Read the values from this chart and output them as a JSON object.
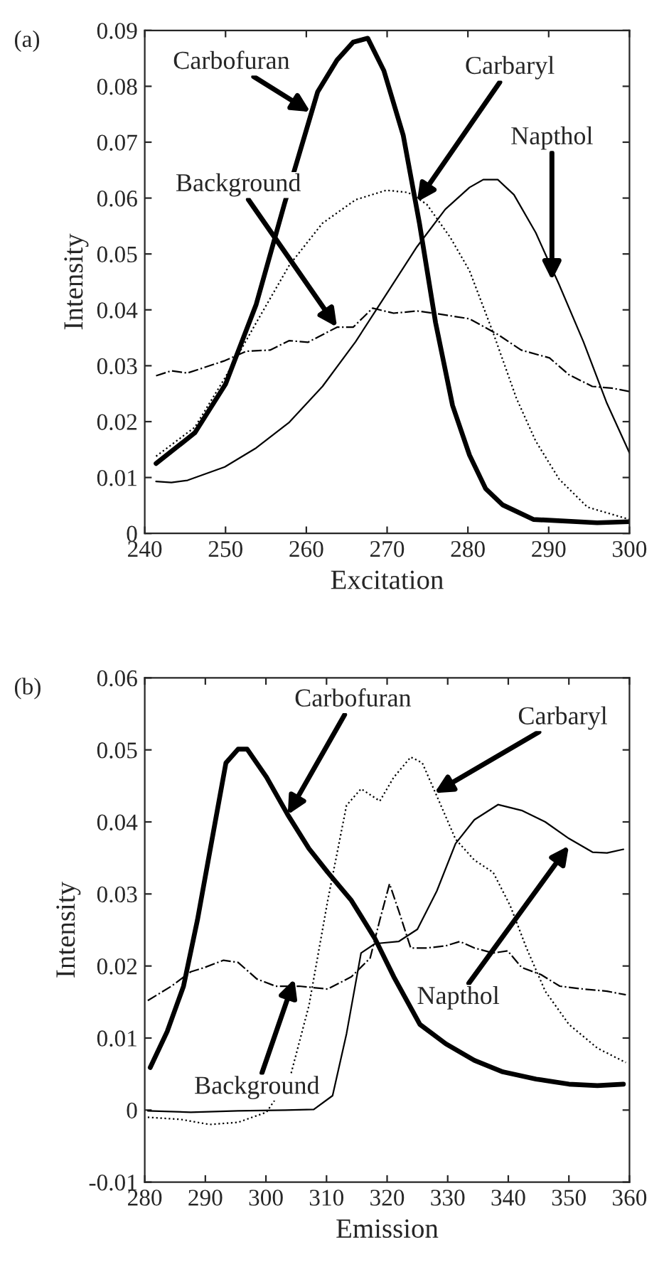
{
  "chart_data": [
    {
      "type": "line",
      "title": "(a)",
      "xlabel": "Excitation",
      "ylabel": "Intensity",
      "xlim": [
        240,
        300
      ],
      "ylim": [
        0,
        0.09
      ],
      "xticks": [
        240,
        250,
        260,
        270,
        280,
        290,
        300
      ],
      "yticks": [
        0,
        0.01,
        0.02,
        0.03,
        0.04,
        0.05,
        0.06,
        0.07,
        0.08,
        0.09
      ],
      "grid": false,
      "legend": false,
      "series": [
        {
          "color": "#000000",
          "line_style": "solid",
          "x": [
            241.4,
            246.2,
            250,
            253.8,
            257.3,
            261.4,
            263.8,
            265.8,
            267.6,
            269.6,
            272,
            274,
            276,
            278.1,
            280.2,
            282.2,
            284.3,
            288.1,
            296,
            300
          ],
          "values": [
            0.0125,
            0.018,
            0.0267,
            0.041,
            0.059,
            0.079,
            0.0847,
            0.0879,
            0.0886,
            0.0828,
            0.0712,
            0.0555,
            0.0377,
            0.0229,
            0.014,
            0.008,
            0.0051,
            0.0025,
            0.0019,
            0.0021
          ]
        },
        {
          "color": "#000000",
          "line_style": "dotted",
          "x": [
            241.4,
            246.2,
            250,
            253.8,
            257.9,
            262,
            266.1,
            269.9,
            272.6,
            274.9,
            277.8,
            280.2,
            283.1,
            286,
            288.4,
            291.3,
            294.8,
            300
          ],
          "values": [
            0.0138,
            0.019,
            0.028,
            0.0377,
            0.048,
            0.0555,
            0.0597,
            0.0614,
            0.061,
            0.0589,
            0.053,
            0.047,
            0.036,
            0.0242,
            0.0165,
            0.0097,
            0.0047,
            0.0025
          ]
        },
        {
          "color": "#000000",
          "line_style": "solid",
          "x": [
            241.4,
            243.3,
            245.3,
            249.9,
            253.8,
            257.9,
            262,
            266.1,
            269.9,
            273.7,
            277.2,
            280.2,
            281.9,
            283.7,
            285.7,
            288.4,
            291.3,
            294.3,
            297.2,
            300
          ],
          "values": [
            0.0093,
            0.0091,
            0.0095,
            0.0119,
            0.0153,
            0.0199,
            0.0263,
            0.0343,
            0.0428,
            0.0513,
            0.058,
            0.0619,
            0.0633,
            0.0633,
            0.0606,
            0.0538,
            0.0445,
            0.0343,
            0.0233,
            0.0144
          ]
        },
        {
          "color": "#000000",
          "line_style": "dashdot",
          "x": [
            241.4,
            243.3,
            245.3,
            249.9,
            252.6,
            255.5,
            257.9,
            260.2,
            263.8,
            265.8,
            268.2,
            270.8,
            273.7,
            276.7,
            280.2,
            283.7,
            286.6,
            290.1,
            292.5,
            295.4,
            297.8,
            300
          ],
          "values": [
            0.0282,
            0.0291,
            0.0287,
            0.0309,
            0.0326,
            0.0328,
            0.0345,
            0.0342,
            0.0369,
            0.0369,
            0.0403,
            0.0394,
            0.0398,
            0.0392,
            0.0384,
            0.0356,
            0.0328,
            0.0314,
            0.0284,
            0.0263,
            0.026,
            0.0254
          ]
        }
      ],
      "annotations": [
        {
          "text": "Carbofuran",
          "x": 260.5,
          "y": 0.0754
        },
        {
          "text": "Carbaryl",
          "x": 273.7,
          "y": 0.0593
        },
        {
          "text": "Napthol",
          "x": 290.4,
          "y": 0.0453
        },
        {
          "text": "Background",
          "x": 263.8,
          "y": 0.0369
        }
      ]
    },
    {
      "type": "line",
      "title": "(b)",
      "xlabel": "Emission",
      "ylabel": "Intensity",
      "xlim": [
        280,
        360
      ],
      "ylim": [
        -0.01,
        0.06
      ],
      "xticks": [
        280,
        290,
        300,
        310,
        320,
        330,
        340,
        350,
        360
      ],
      "yticks": [
        -0.01,
        0,
        0.01,
        0.02,
        0.03,
        0.04,
        0.05,
        0.06
      ],
      "grid": false,
      "legend": false,
      "series": [
        {
          "color": "#000000",
          "line_style": "solid",
          "x": [
            280.9,
            283.7,
            286.4,
            288.7,
            290.7,
            293.4,
            295.4,
            296.9,
            300.1,
            303.6,
            307.1,
            310.2,
            314.1,
            318,
            321.1,
            325.4,
            329.7,
            334.4,
            339.1,
            344.6,
            350,
            354.7,
            359
          ],
          "values": [
            0.0059,
            0.0109,
            0.0172,
            0.0264,
            0.0357,
            0.0482,
            0.0501,
            0.0501,
            0.0462,
            0.041,
            0.0363,
            0.033,
            0.0291,
            0.0238,
            0.0185,
            0.0119,
            0.0092,
            0.0069,
            0.0053,
            0.0043,
            0.0036,
            0.0034,
            0.0036
          ]
        },
        {
          "color": "#000000",
          "line_style": "dotted",
          "x": [
            280.5,
            286,
            290.7,
            295.4,
            300.1,
            304,
            307.1,
            310.2,
            313.3,
            315.7,
            318.8,
            321.1,
            323.9,
            325.8,
            328.2,
            331.3,
            334.4,
            337.5,
            340.3,
            343,
            346.1,
            350,
            354.7,
            359.4
          ],
          "values": [
            -0.001,
            -0.0013,
            -0.002,
            -0.0017,
            -0.0003,
            0.0046,
            0.0145,
            0.0291,
            0.0423,
            0.0446,
            0.0429,
            0.0462,
            0.049,
            0.0482,
            0.0436,
            0.0376,
            0.0347,
            0.033,
            0.0284,
            0.0225,
            0.0165,
            0.0119,
            0.0086,
            0.0066
          ]
        },
        {
          "color": "#000000",
          "line_style": "solid",
          "x": [
            280.5,
            287.6,
            295.4,
            303.2,
            307.9,
            311,
            313.3,
            315.7,
            318,
            321.9,
            325,
            328.2,
            331.3,
            334.4,
            338.3,
            342.2,
            346.1,
            350,
            353.9,
            356.3,
            359
          ],
          "values": [
            -0.0001,
            -0.0003,
            -0.0001,
            0,
            0.0001,
            0.002,
            0.0106,
            0.0218,
            0.0231,
            0.0234,
            0.0251,
            0.0304,
            0.037,
            0.0403,
            0.0424,
            0.0416,
            0.04,
            0.0377,
            0.0358,
            0.0357,
            0.0362
          ]
        },
        {
          "color": "#000000",
          "line_style": "dashdot",
          "x": [
            280.5,
            284.4,
            287.6,
            289.9,
            293,
            295.4,
            298.5,
            301.6,
            305.5,
            310.2,
            314.1,
            317.2,
            318.8,
            320.4,
            321.9,
            323.9,
            326.6,
            329.7,
            332,
            334.4,
            337.5,
            339.9,
            342.2,
            345.4,
            348.5,
            352.4,
            356.3,
            359.4
          ],
          "values": [
            0.0152,
            0.0172,
            0.0192,
            0.0198,
            0.0208,
            0.0205,
            0.0182,
            0.0172,
            0.0172,
            0.0168,
            0.0185,
            0.0211,
            0.0264,
            0.0314,
            0.0277,
            0.0225,
            0.0225,
            0.0228,
            0.0234,
            0.0225,
            0.0218,
            0.0221,
            0.0198,
            0.0188,
            0.0172,
            0.0168,
            0.0165,
            0.016
          ]
        }
      ],
      "annotations": [
        {
          "text": "Carbofuran",
          "x": 303.6,
          "y": 0.041
        },
        {
          "text": "Carbaryl",
          "x": 327.8,
          "y": 0.044
        },
        {
          "text": "Napthol",
          "x": 350,
          "y": 0.0367
        },
        {
          "text": "Background",
          "x": 304.7,
          "y": 0.0182
        }
      ]
    }
  ]
}
